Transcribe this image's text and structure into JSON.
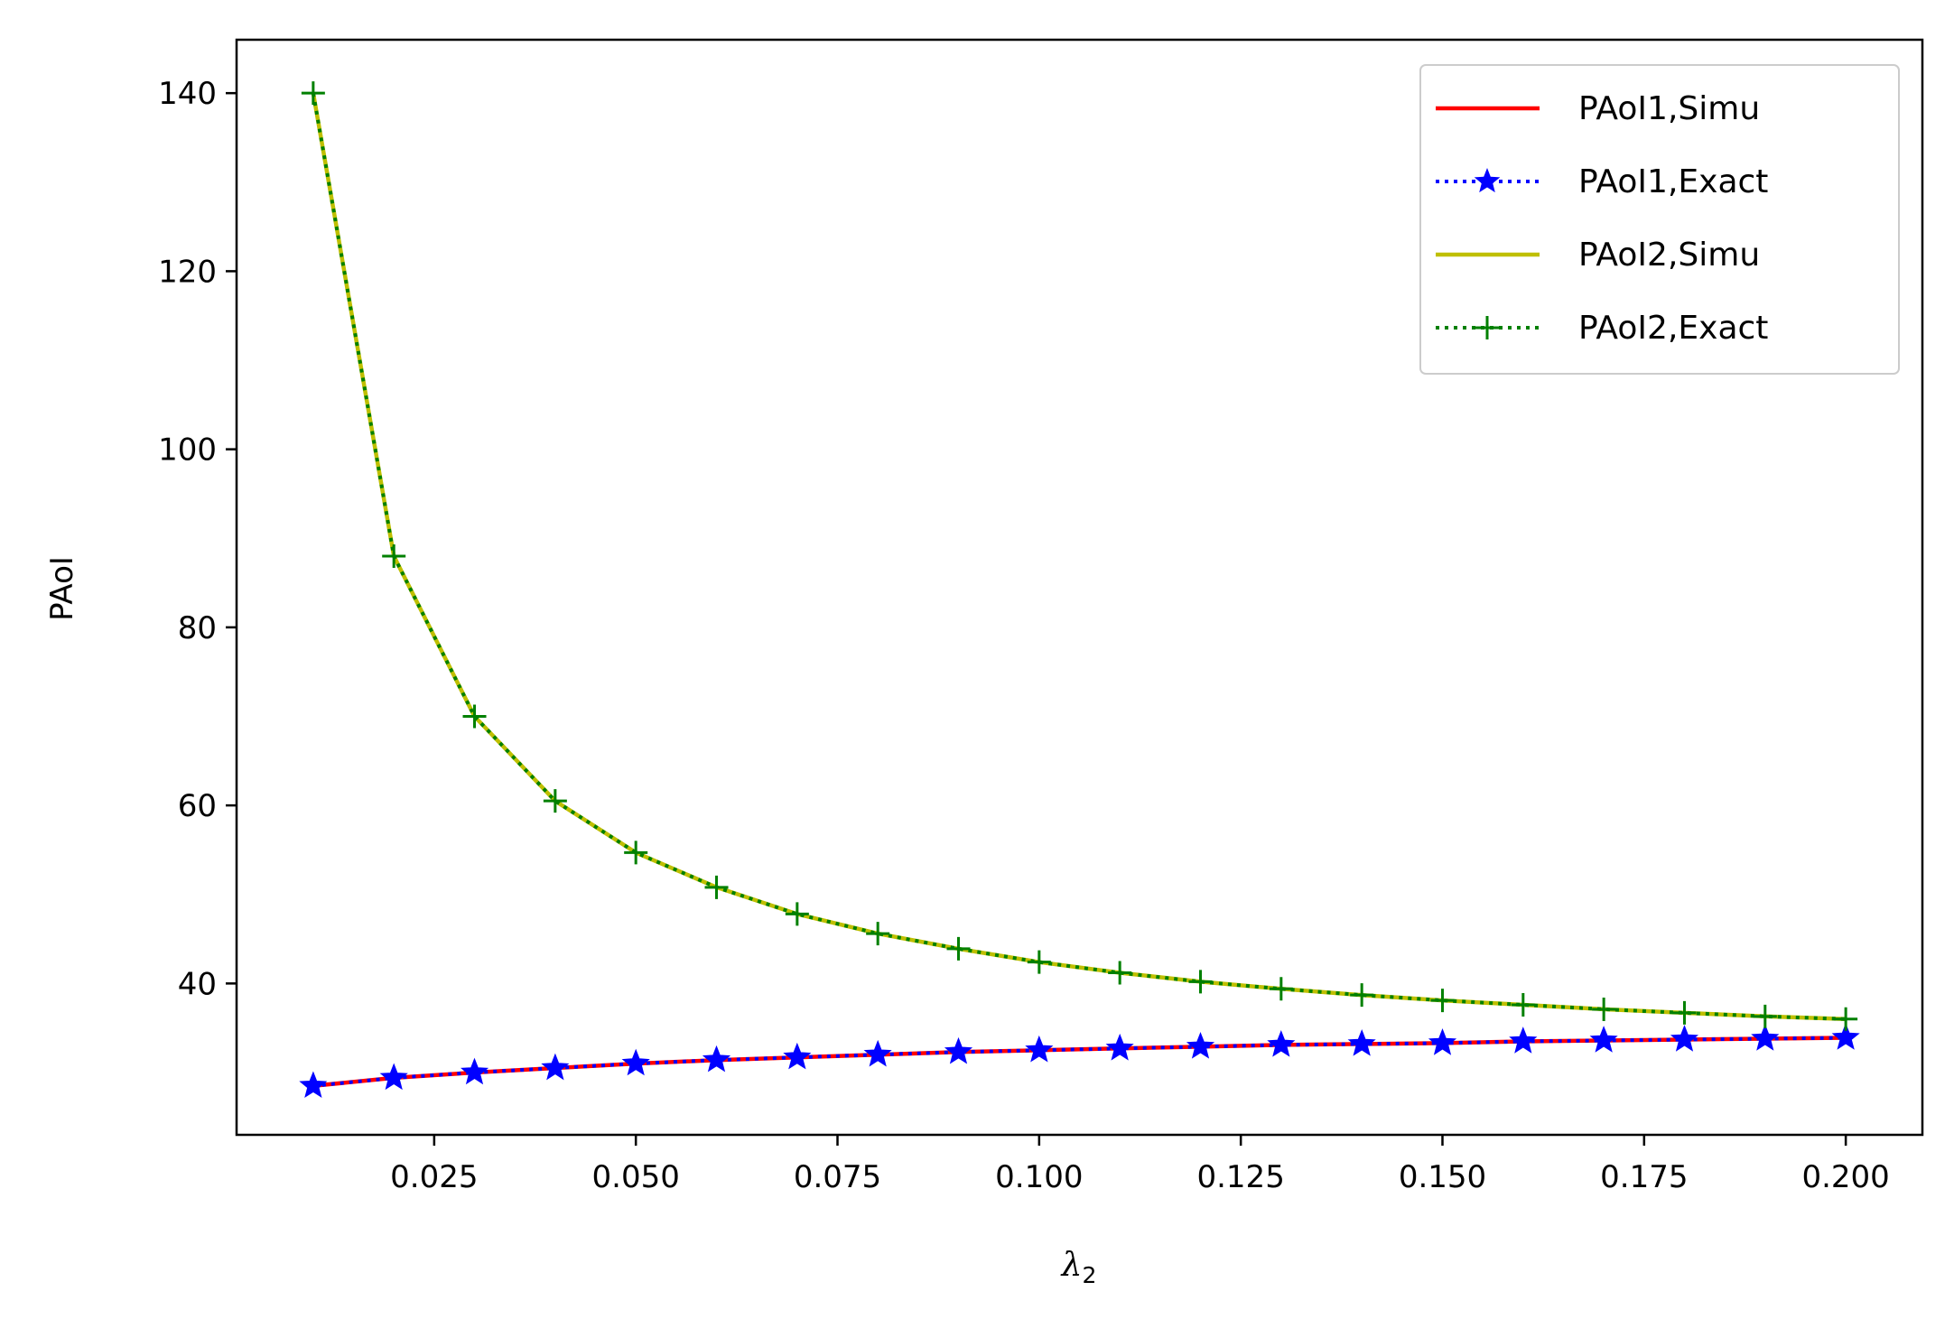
{
  "chart_data": {
    "type": "line",
    "title": "",
    "xlabel": "λ",
    "xlabel_sub": "2",
    "ylabel": "PAoI",
    "xlim": [
      0.0005,
      0.2095
    ],
    "ylim": [
      23.0,
      146.0
    ],
    "x_ticks": [
      0.025,
      0.05,
      0.075,
      0.1,
      0.125,
      0.15,
      0.175,
      0.2
    ],
    "x_tick_labels": [
      "0.025",
      "0.050",
      "0.075",
      "0.100",
      "0.125",
      "0.150",
      "0.175",
      "0.200"
    ],
    "y_ticks": [
      40,
      60,
      80,
      100,
      120,
      140
    ],
    "y_tick_labels": [
      "40",
      "60",
      "80",
      "100",
      "120",
      "140"
    ],
    "grid": false,
    "legend_position": "top-right",
    "x": [
      0.01,
      0.02,
      0.03,
      0.04,
      0.05,
      0.06,
      0.07,
      0.08,
      0.09,
      0.1,
      0.11,
      0.12,
      0.13,
      0.14,
      0.15,
      0.16,
      0.17,
      0.18,
      0.19,
      0.2
    ],
    "series": [
      {
        "name": "PAoI1,Simu",
        "color": "#ff0000",
        "line": "solid",
        "marker": "none",
        "values": [
          28.5,
          29.4,
          30.0,
          30.5,
          31.0,
          31.4,
          31.7,
          32.0,
          32.3,
          32.5,
          32.7,
          32.9,
          33.1,
          33.2,
          33.3,
          33.5,
          33.6,
          33.7,
          33.8,
          33.9
        ]
      },
      {
        "name": "PAoI1,Exact",
        "color": "#0000ff",
        "line": "dotted",
        "marker": "star",
        "values": [
          28.5,
          29.4,
          30.0,
          30.5,
          31.0,
          31.4,
          31.7,
          32.0,
          32.3,
          32.5,
          32.7,
          32.9,
          33.1,
          33.2,
          33.3,
          33.5,
          33.6,
          33.7,
          33.8,
          33.9
        ]
      },
      {
        "name": "PAoI2,Simu",
        "color": "#bfbf00",
        "line": "solid",
        "marker": "none",
        "values": [
          140.0,
          88.0,
          70.0,
          60.5,
          54.7,
          50.8,
          47.8,
          45.6,
          43.9,
          42.4,
          41.2,
          40.2,
          39.4,
          38.7,
          38.1,
          37.6,
          37.1,
          36.7,
          36.3,
          36.0
        ]
      },
      {
        "name": "PAoI2,Exact",
        "color": "#008000",
        "line": "dotted",
        "marker": "plus",
        "values": [
          140.0,
          88.0,
          70.0,
          60.5,
          54.7,
          50.8,
          47.8,
          45.6,
          43.9,
          42.4,
          41.2,
          40.2,
          39.4,
          38.7,
          38.1,
          37.6,
          37.1,
          36.7,
          36.3,
          36.0
        ]
      }
    ]
  }
}
